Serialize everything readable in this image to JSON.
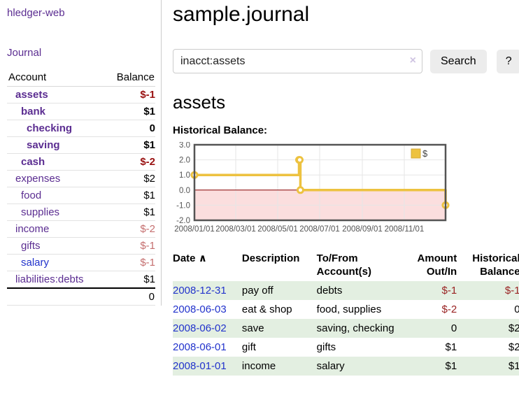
{
  "app": {
    "title": "hledger-web",
    "nav_journal": "Journal"
  },
  "sidebar": {
    "table": {
      "col_account": "Account",
      "col_balance": "Balance",
      "accounts": [
        {
          "name": "assets",
          "level": 1,
          "bold": true,
          "balance": "$-1",
          "neg": "strong"
        },
        {
          "name": "bank",
          "level": 2,
          "bold": true,
          "balance": "$1",
          "neg": "none"
        },
        {
          "name": "checking",
          "level": 3,
          "bold": true,
          "balance": "0",
          "neg": "none"
        },
        {
          "name": "saving",
          "level": 3,
          "bold": true,
          "balance": "$1",
          "neg": "none"
        },
        {
          "name": "cash",
          "level": 2,
          "bold": true,
          "balance": "$-2",
          "neg": "strong"
        },
        {
          "name": "expenses",
          "level": 1,
          "bold": false,
          "balance": "$2",
          "neg": "none"
        },
        {
          "name": "food",
          "level": 2,
          "bold": false,
          "balance": "$1",
          "neg": "none"
        },
        {
          "name": "supplies",
          "level": 2,
          "bold": false,
          "balance": "$1",
          "neg": "none"
        },
        {
          "name": "income",
          "level": 1,
          "bold": false,
          "balance": "$-2",
          "neg": "muted"
        },
        {
          "name": "gifts",
          "level": 2,
          "bold": false,
          "balance": "$-1",
          "neg": "muted"
        },
        {
          "name": "salary",
          "level": 2,
          "bold": false,
          "balance": "$-1",
          "neg": "muted",
          "blue": true
        },
        {
          "name": "liabilities:debts",
          "level": 1,
          "bold": false,
          "balance": "$1",
          "neg": "none"
        }
      ],
      "total": "0"
    }
  },
  "main": {
    "title": "sample.journal",
    "search": {
      "value": "inacct:assets",
      "clear_label": "×",
      "button": "Search",
      "help_button": "?"
    },
    "account_heading": "assets",
    "register": {
      "columns": {
        "date": "Date",
        "sort_indicator": "∧",
        "description": "Description",
        "account": "To/From Account(s)",
        "amount": "Amount Out/In",
        "balance": "Historical Balance"
      },
      "rows": [
        {
          "date": "2008-12-31",
          "description": "pay off",
          "accounts": "debts",
          "amount": "$-1",
          "amount_neg": true,
          "balance": "$-1",
          "balance_neg": true
        },
        {
          "date": "2008-06-03",
          "description": "eat & shop",
          "accounts": "food, supplies",
          "amount": "$-2",
          "amount_neg": true,
          "balance": "0",
          "balance_neg": false
        },
        {
          "date": "2008-06-02",
          "description": "save",
          "accounts": "saving, checking",
          "amount": "0",
          "amount_neg": false,
          "balance": "$2",
          "balance_neg": false
        },
        {
          "date": "2008-06-01",
          "description": "gift",
          "accounts": "gifts",
          "amount": "$1",
          "amount_neg": false,
          "balance": "$2",
          "balance_neg": false
        },
        {
          "date": "2008-01-01",
          "description": "income",
          "accounts": "salary",
          "amount": "$1",
          "amount_neg": false,
          "balance": "$1",
          "balance_neg": false
        }
      ]
    }
  },
  "chart_data": {
    "type": "line",
    "subtype": "step-after",
    "title": "Historical Balance:",
    "series": [
      {
        "name": "$",
        "color": "#edc240",
        "points": [
          [
            "2008-01-01",
            1
          ],
          [
            "2008-06-01",
            2
          ],
          [
            "2008-06-02",
            2
          ],
          [
            "2008-06-03",
            0
          ],
          [
            "2008-12-31",
            -1
          ]
        ]
      }
    ],
    "x_range": [
      "2008-01-01",
      "2008-12-31"
    ],
    "ylim": [
      -2,
      3
    ],
    "y_ticks": [
      "3.0",
      "2.0",
      "1.0",
      "0.0",
      "-1.0",
      "-2.0"
    ],
    "x_ticks": [
      "2008/01/01",
      "2008/03/01",
      "2008/05/01",
      "2008/07/01",
      "2008/09/01",
      "2008/11/01"
    ],
    "legend_position": "top-right",
    "grid": true,
    "negative_region_color": "#fbdede",
    "zero_line_color": "#8b0000",
    "axis_label_color": "#545454"
  }
}
